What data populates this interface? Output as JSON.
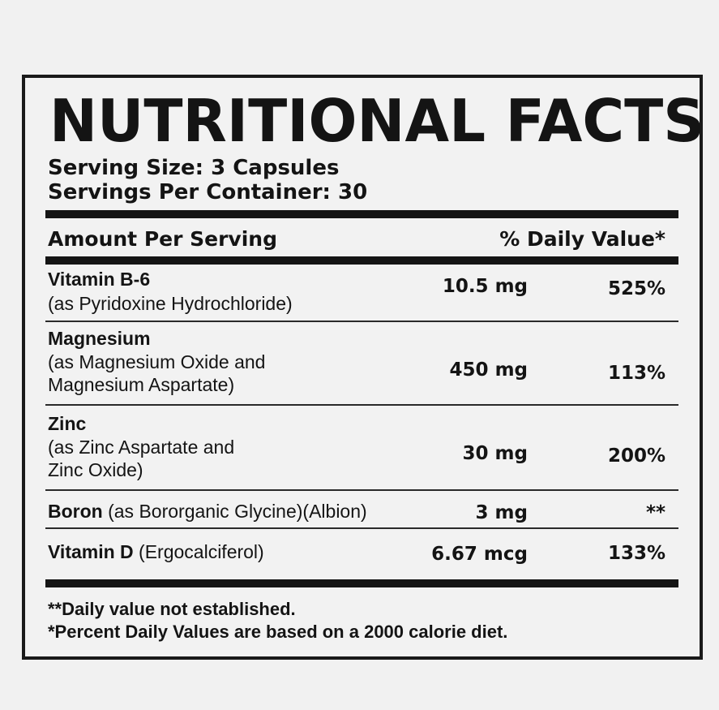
{
  "label": {
    "title": "NUTRITIONAL FACTS",
    "serving_size": "Serving Size: 3 Capsules",
    "servings_per_container": "Servings Per Container: 30",
    "header_amount": "Amount Per Serving",
    "header_dv": "% Daily Value*",
    "nutrients": [
      {
        "name": "Vitamin B-6",
        "source": "(as Pyridoxine Hydrochloride)",
        "amount": "10.5 mg",
        "daily_value": "525%"
      },
      {
        "name": "Magnesium",
        "source": "(as Magnesium Oxide and\nMagnesium Aspartate)",
        "amount": "450 mg",
        "daily_value": "113%"
      },
      {
        "name": "Zinc",
        "source": "(as Zinc Aspartate and\nZinc Oxide)",
        "amount": "30 mg",
        "daily_value": "200%"
      },
      {
        "name": "Boron",
        "source": "(as Bororganic Glycine)(Albion)",
        "amount": "3 mg",
        "daily_value": "**"
      },
      {
        "name": "Vitamin D",
        "source": "(Ergocalciferol)",
        "amount": "6.67 mcg",
        "daily_value": "133%"
      }
    ],
    "footnote_1": "**Daily value not established.",
    "footnote_2": "*Percent Daily Values are based on a 2000 calorie diet."
  }
}
